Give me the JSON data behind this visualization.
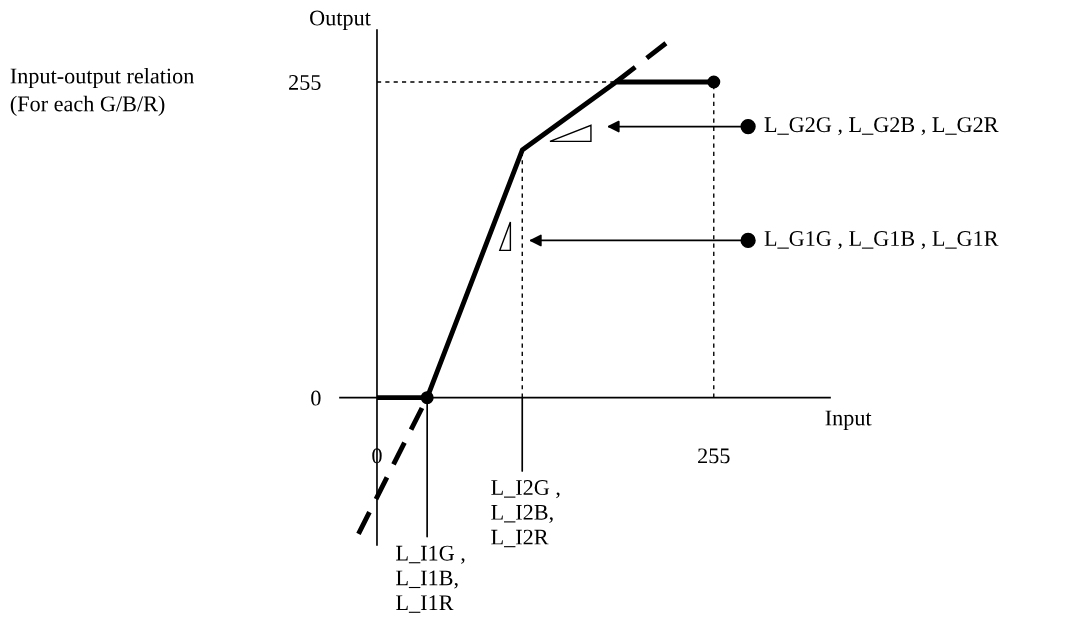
{
  "chart_data": {
    "type": "line",
    "xlabel": "Input",
    "ylabel": "Output",
    "xlim": [
      -28,
      343
    ],
    "ylim": [
      -119,
      297
    ],
    "xticks": [
      0,
      255
    ],
    "yticks": [
      0,
      255
    ],
    "grid": false,
    "series": [
      {
        "type": "line",
        "color": "#000000",
        "line_style": "solid",
        "x": [
          0,
          38,
          110,
          181,
          255
        ],
        "values": [
          0,
          0,
          200,
          255,
          255
        ]
      },
      {
        "type": "line",
        "color": "#000000",
        "line_style": "dashed",
        "x": [
          -14,
          38
        ],
        "values": [
          -110,
          0
        ]
      },
      {
        "type": "line",
        "color": "#000000",
        "line_style": "dashed",
        "x": [
          181,
          222
        ],
        "values": [
          255,
          289
        ]
      },
      {
        "type": "line",
        "color": "#000000",
        "line_style": "dotted",
        "x": [
          110,
          110
        ],
        "values": [
          0,
          200
        ]
      },
      {
        "type": "line",
        "color": "#000000",
        "line_style": "dotted",
        "x": [
          255,
          255
        ],
        "values": [
          0,
          255
        ]
      },
      {
        "type": "line",
        "color": "#000000",
        "line_style": "dotted",
        "x": [
          0,
          255
        ],
        "values": [
          255,
          255
        ]
      },
      {
        "type": "scatter",
        "color": "#000000",
        "marker": "circle",
        "x": [
          38,
          255
        ],
        "values": [
          0,
          255
        ]
      }
    ],
    "annotations": [
      "Input-output relation\n(For each G/B/R)",
      "L_G2G , L_G2B , L_G2R",
      {
        "text": "L_G1G , L_G1B , L_G1R",
        "x": 113,
        "y": 127
      },
      {
        "text": "L_I1G ,\nL_I1B,\nL_I1R",
        "x": 38,
        "y": 0
      },
      {
        "text": "L_I2G ,\nL_I2B,\nL_I2R",
        "x": 110,
        "y": 0
      }
    ]
  }
}
